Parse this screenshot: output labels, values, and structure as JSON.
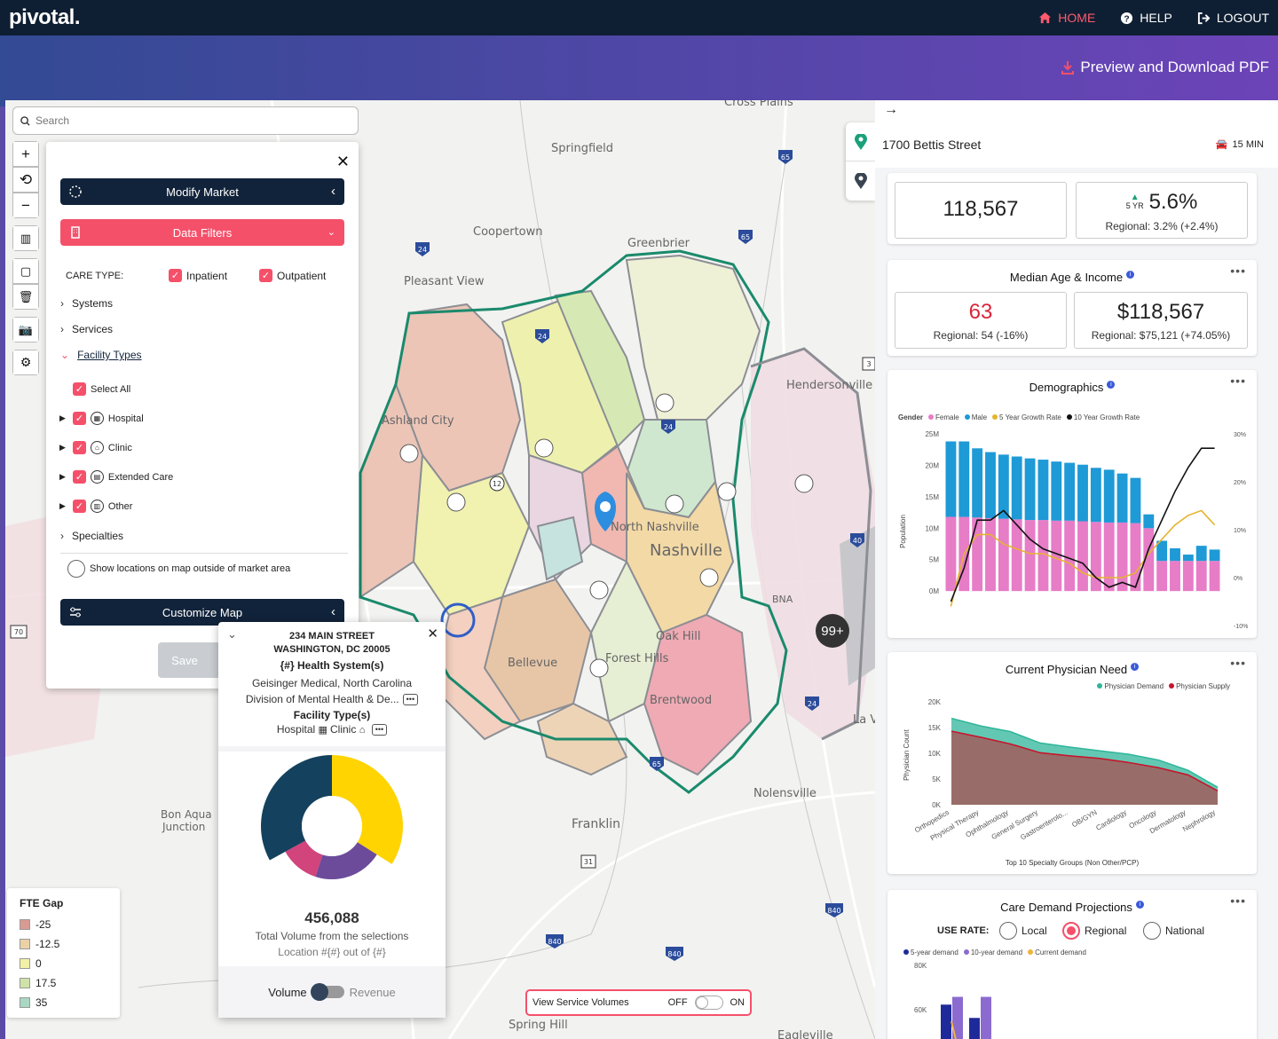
{
  "brand": {
    "name": "pivotal."
  },
  "nav": {
    "home": "HOME",
    "help": "HELP",
    "logout": "LOGOUT"
  },
  "actions": {
    "pdf": "Preview and Download PDF"
  },
  "search": {
    "placeholder": "Search"
  },
  "panel": {
    "modify_market": "Modify Market",
    "data_filters": "Data Filters",
    "care_type_label": "CARE TYPE:",
    "inpatient": "Inpatient",
    "outpatient": "Outpatient",
    "systems": "Systems",
    "services": "Services",
    "facility_types": "Facility Types",
    "select_all": "Select All",
    "facilities": [
      "Hospital",
      "Clinic",
      "Extended Care",
      "Other"
    ],
    "specialties": "Specialties",
    "show_locations": "Show locations on map outside of market area",
    "customize_map": "Customize Map",
    "save": "Save"
  },
  "popup": {
    "address1": "234 MAIN STREET",
    "address2": "WASHINGTON, DC 20005",
    "health_systems_label": "{#} Health System(s)",
    "systems_line1": "Geisinger Medical, North Carolina",
    "systems_line2": "Division of Mental Health & De...",
    "facility_types_label": "Facility Type(s)",
    "facility_hospital": "Hospital",
    "facility_clinic": "Clinic",
    "total": "456,088",
    "total_label": "Total Volume from the selections",
    "location": "Location #{#} out of {#}",
    "volume": "Volume",
    "revenue": "Revenue"
  },
  "service_volumes": {
    "label": "View Service Volumes",
    "off": "OFF",
    "on": "ON"
  },
  "map_labels": {
    "cross_plains": "Cross Plains",
    "springfield": "Springfield",
    "coopertown": "Coopertown",
    "greenbrier": "Greenbrier",
    "pleasant_view": "Pleasant View",
    "ashland_city": "Ashland City",
    "hendersonville": "Hendersonville",
    "north_nashville": "North Nashville",
    "nashville": "Nashville",
    "oak_hill": "Oak Hill",
    "bellevue": "Bellevue",
    "forest_hills": "Forest Hills",
    "brentwood": "Brentwood",
    "nolensville": "Nolensville",
    "franklin": "Franklin",
    "bon_aqua": "Bon Aqua",
    "junction": "Junction",
    "spring_hill": "Spring Hill",
    "eagleville": "Eagleville",
    "la_vergne": "La Verg",
    "bna": "BNA",
    "hw_24a": "24",
    "hw_24b": "24",
    "hw_24c": "24",
    "hw_24d": "24",
    "hw_65a": "65",
    "hw_65b": "65",
    "hw_40": "40",
    "hw_440": "440",
    "hw_840a": "840",
    "hw_840b": "840",
    "hw_840c": "840",
    "hw_12": "12",
    "hw_31": "31",
    "hw_70": "70",
    "hw_3": "3",
    "hw_65c": "65"
  },
  "legend": {
    "title": "FTE Gap",
    "items": [
      {
        "label": "-25",
        "color": "#d99a94"
      },
      {
        "label": "-12.5",
        "color": "#ead2a6"
      },
      {
        "label": "0",
        "color": "#f3f1a6"
      },
      {
        "label": "17.5",
        "color": "#cfe3a8"
      },
      {
        "label": "35",
        "color": "#a8d8c2"
      }
    ]
  },
  "cluster": {
    "count": "99+"
  },
  "right": {
    "address": "1700 Bettis Street",
    "drive": "15 MIN",
    "population": "118,567",
    "growth_period": "5 YR",
    "growth": "5.6%",
    "growth_regional": "Regional: 3.2% (+2.4%)",
    "age_income_title": "Median Age & Income",
    "age": "63",
    "age_regional": "Regional: 54 (-16%)",
    "income": "$118,567",
    "income_regional": "Regional: $75,121 (+74.05%)",
    "demographics_title": "Demographics",
    "physician_title": "Current Physician Need",
    "care_title": "Care Demand Projections",
    "use_rate": "USE RATE:",
    "use_local": "Local",
    "use_regional": "Regional",
    "use_national": "National"
  },
  "chart_data": [
    {
      "type": "bar",
      "title": "Demographics",
      "ylabel": "Population",
      "ylim": [
        0,
        25000000
      ],
      "y_ticks": [
        "25M",
        "20M",
        "15M",
        "10M",
        "5M",
        "0M"
      ],
      "y2_ticks": [
        "30%",
        "20%",
        "10%",
        "0%",
        "-10%"
      ],
      "legend_title": "Gender",
      "series": [
        {
          "name": "Female",
          "color": "#e77cc7",
          "values": [
            11.8,
            11.8,
            11.7,
            11.6,
            11.5,
            11.4,
            11.3,
            11.3,
            11.2,
            11.2,
            11.1,
            11.0,
            10.9,
            10.9,
            10.8,
            10.0,
            4.8,
            4.8,
            4.8,
            4.8,
            4.8
          ]
        },
        {
          "name": "Male",
          "color": "#1e9ad6",
          "values": [
            12.0,
            12.0,
            11.0,
            10.5,
            10.2,
            10.0,
            9.8,
            9.6,
            9.4,
            9.2,
            9.0,
            8.6,
            8.4,
            7.8,
            7.2,
            2.2,
            3.2,
            2.0,
            1.0,
            2.4,
            1.8
          ]
        },
        {
          "name": "5 Year Growth Rate",
          "color": "#e5b42e",
          "values": [
            -6,
            5,
            9,
            9,
            7,
            6,
            5,
            5,
            4,
            3,
            1,
            0,
            0,
            0,
            1,
            5,
            8,
            11,
            13,
            14,
            11
          ]
        },
        {
          "name": "10 Year Growth Rate",
          "color": "#111111",
          "values": [
            -5,
            2,
            12,
            12,
            14,
            11,
            8,
            6,
            5,
            4,
            3,
            0,
            -2,
            -1,
            -2,
            6,
            12,
            18,
            23,
            27,
            27
          ]
        }
      ]
    },
    {
      "type": "area",
      "title": "Current Physician Need",
      "xlabel": "Top 10 Specialty Groups (Non Other/PCP)",
      "ylabel": "Physician Count",
      "ylim": [
        0,
        20000
      ],
      "y_ticks": [
        "20K",
        "15K",
        "10K",
        "5K",
        "0K"
      ],
      "categories": [
        "Orthopedics",
        "Physical Therapy",
        "Ophthalmology",
        "General Surgery",
        "Gastroenterolo...",
        "OB/GYN",
        "Cardiology",
        "Oncology",
        "Dermatology",
        "Nephrology"
      ],
      "series": [
        {
          "name": "Physician Demand",
          "color": "#2fb59a",
          "values": [
            16800,
            15300,
            14200,
            12000,
            11200,
            10500,
            9800,
            8700,
            6700,
            3400
          ]
        },
        {
          "name": "Physician Supply",
          "color": "#c6152d",
          "values": [
            14300,
            13100,
            11800,
            10100,
            9500,
            9000,
            8200,
            7200,
            5800,
            2700
          ]
        }
      ]
    },
    {
      "type": "bar",
      "title": "Care Demand Projections",
      "y_ticks": [
        "80K",
        "60K"
      ],
      "series": [
        {
          "name": "5-year demand",
          "color": "#1f2a9a",
          "values": [
            55000,
            43000
          ]
        },
        {
          "name": "10-year demand",
          "color": "#8b6bd0",
          "values": [
            62000,
            62000
          ]
        },
        {
          "name": "Current demand",
          "color": "#f0b33c",
          "values": [
            40000
          ]
        }
      ]
    }
  ],
  "donut_data": {
    "values": [
      34,
      21,
      12,
      33
    ],
    "colors": [
      "#ffd400",
      "#6b4b9a",
      "#d1447c",
      "#14415e"
    ]
  }
}
